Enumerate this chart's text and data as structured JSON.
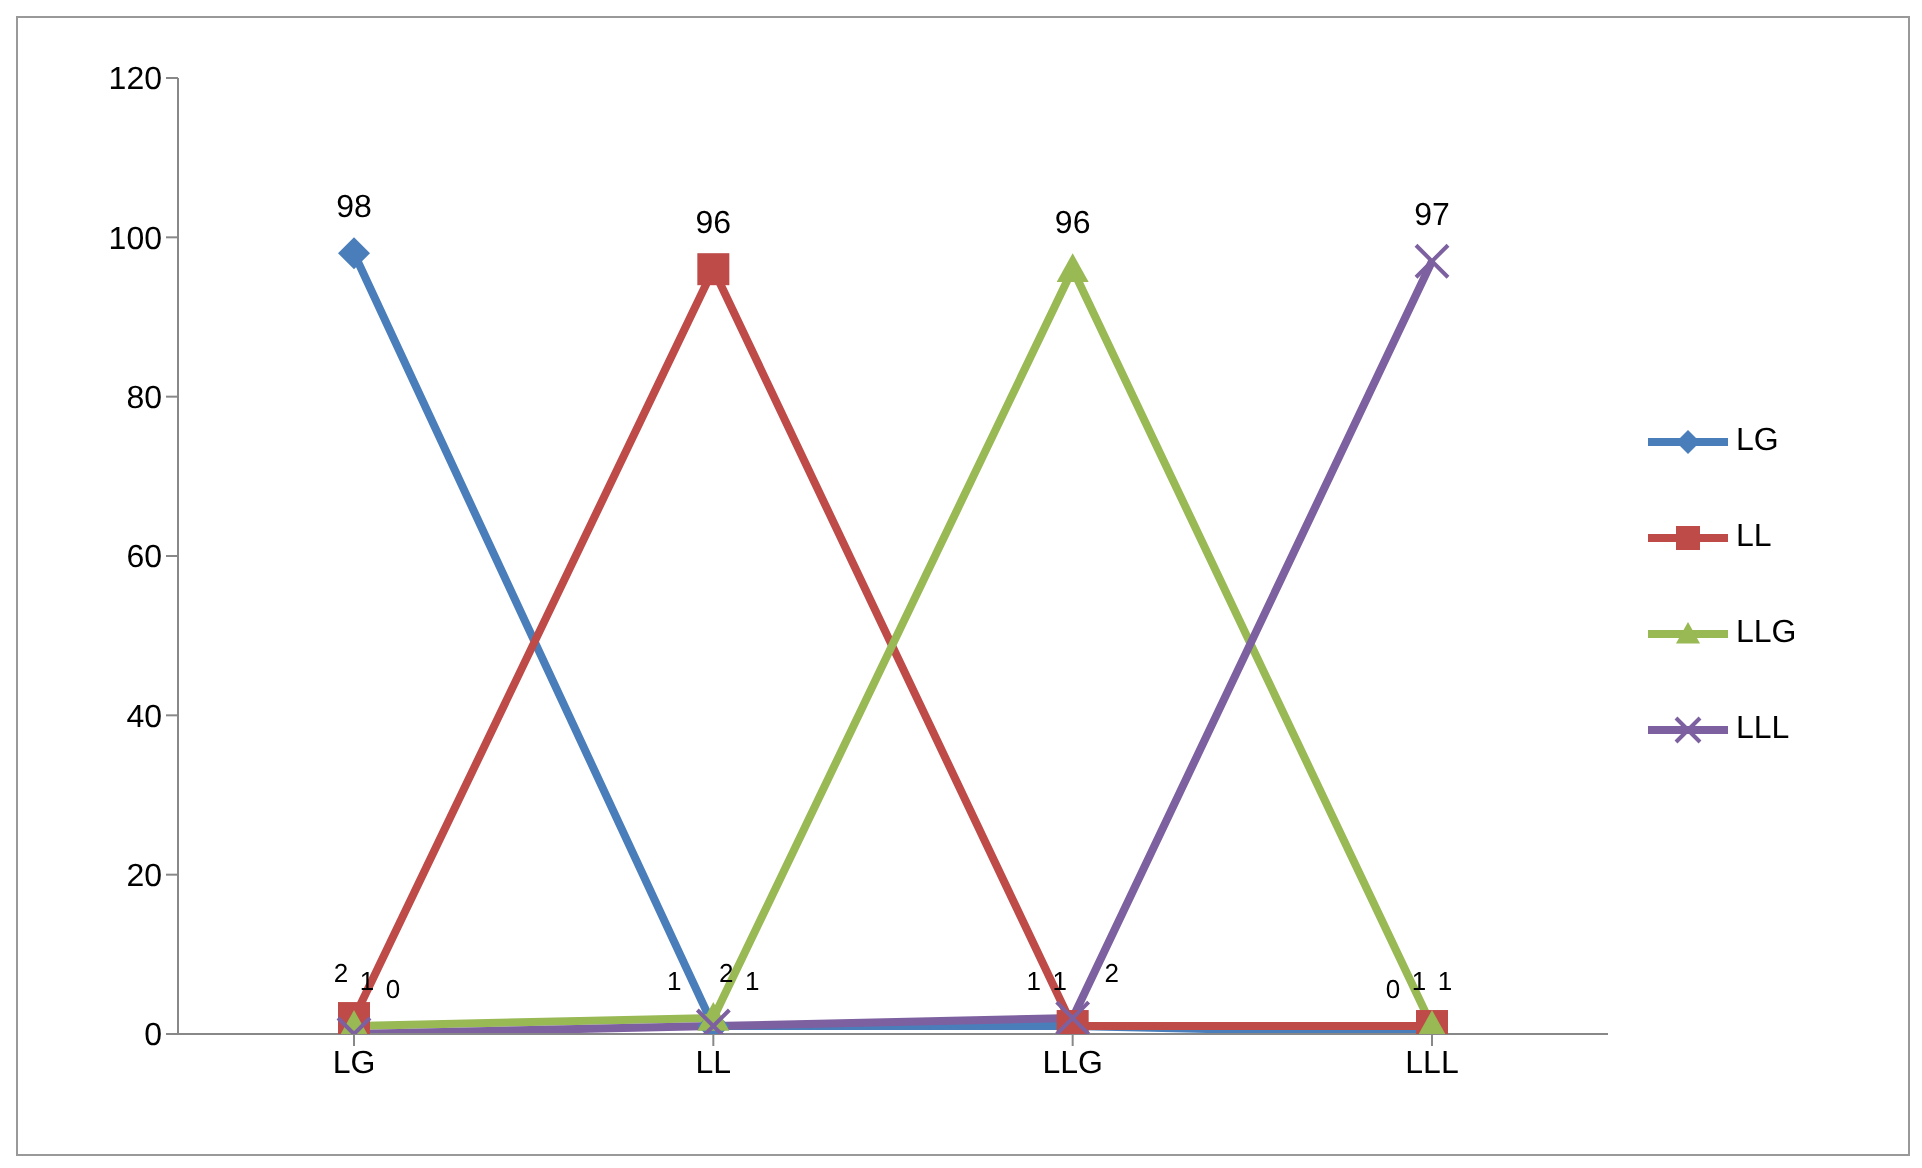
{
  "chart_data": {
    "type": "line",
    "categories": [
      "LG",
      "LL",
      "LLG",
      "LLL"
    ],
    "series": [
      {
        "name": "LG",
        "color": "#4a7ebb",
        "marker": "diamond",
        "values": [
          98,
          1,
          1,
          0
        ],
        "value_labels": [
          "98",
          "1",
          "1",
          "0"
        ]
      },
      {
        "name": "LL",
        "color": "#be4b48",
        "marker": "square",
        "values": [
          2,
          96,
          1,
          1
        ],
        "value_labels": [
          "2",
          "96",
          "1",
          "1"
        ]
      },
      {
        "name": "LLG",
        "color": "#98b954",
        "marker": "triangle",
        "values": [
          1,
          2,
          96,
          1
        ],
        "value_labels": [
          "1",
          "2",
          "96",
          "1"
        ]
      },
      {
        "name": "LLL",
        "color": "#7d60a0",
        "marker": "cross",
        "values": [
          0,
          1,
          2,
          97
        ],
        "value_labels": [
          "0",
          "1",
          "2",
          "97"
        ]
      }
    ],
    "ylim": [
      0,
      120
    ],
    "yticks": [
      0,
      20,
      40,
      60,
      80,
      100,
      120
    ],
    "grid": false,
    "legend": "right"
  }
}
